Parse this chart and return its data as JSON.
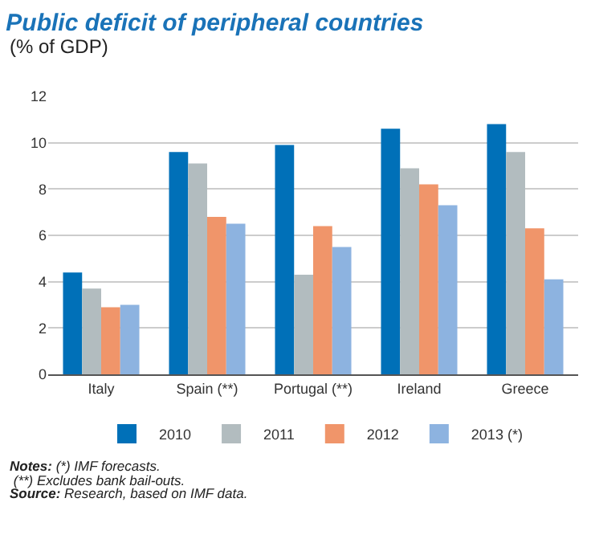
{
  "chart_data": {
    "type": "bar",
    "title": "Public deficit of peripheral countries",
    "subtitle": "(% of GDP)",
    "categories": [
      "Italy",
      "Spain (**)",
      "Portugal (**)",
      "Ireland",
      "Greece"
    ],
    "series": [
      {
        "name": "2010",
        "color": "#0070b8",
        "values": [
          4.4,
          9.6,
          9.9,
          10.6,
          10.8
        ]
      },
      {
        "name": "2011",
        "color": "#b2bcbf",
        "values": [
          3.7,
          9.1,
          4.3,
          8.9,
          9.6
        ]
      },
      {
        "name": "2012",
        "color": "#f0956a",
        "values": [
          2.9,
          6.8,
          6.4,
          8.2,
          6.3
        ]
      },
      {
        "name": "2013 (*)",
        "color": "#8db3e0",
        "values": [
          3.0,
          6.5,
          5.5,
          7.3,
          4.1
        ]
      }
    ],
    "ylim": [
      0,
      12
    ],
    "yticks": [
      0,
      2,
      4,
      6,
      8,
      10,
      12
    ],
    "grid": "y",
    "legend": "bottom",
    "annotations": [
      "Notes: (*) IMF forecasts.",
      " (**) Excludes bank bail-outs.",
      "Source: Research, based on IMF data."
    ]
  }
}
